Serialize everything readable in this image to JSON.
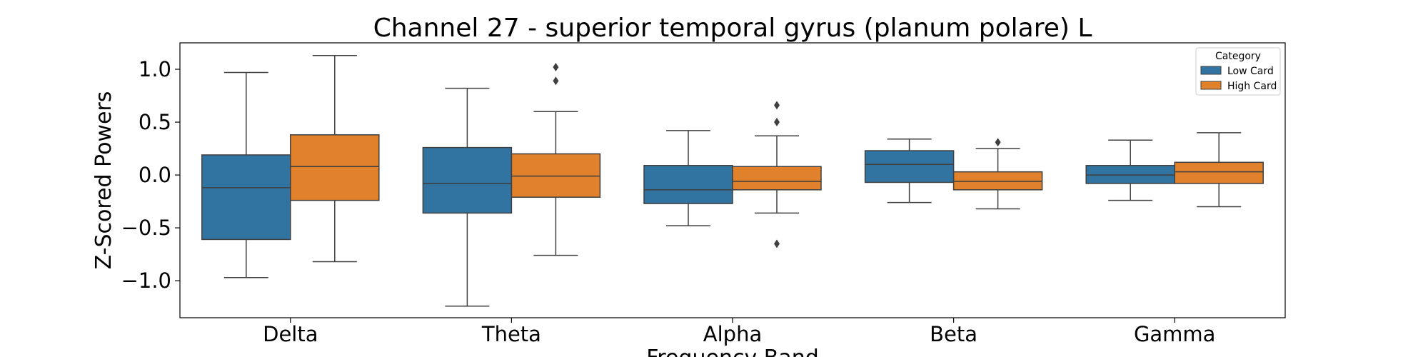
{
  "chart_data": {
    "type": "box",
    "title": "Channel 27 - superior temporal gyrus (planum polare) L",
    "xlabel": "Frequency Band",
    "ylabel": "Z-Scored Powers",
    "ylim": [
      -1.35,
      1.25
    ],
    "yticks": [
      -1.0,
      -0.5,
      0.0,
      0.5,
      1.0
    ],
    "ytick_labels": [
      "−1.0",
      "−0.5",
      "0.0",
      "0.5",
      "1.0"
    ],
    "categories": [
      "Delta",
      "Theta",
      "Alpha",
      "Beta",
      "Gamma"
    ],
    "legend": {
      "title": "Category",
      "placement": "top-right"
    },
    "series": [
      {
        "name": "Low Card",
        "color": "#3274a1",
        "boxes": [
          {
            "whislo": -0.97,
            "q1": -0.61,
            "med": -0.12,
            "q3": 0.19,
            "whishi": 0.97,
            "fliers": []
          },
          {
            "whislo": -1.24,
            "q1": -0.36,
            "med": -0.08,
            "q3": 0.26,
            "whishi": 0.82,
            "fliers": []
          },
          {
            "whislo": -0.48,
            "q1": -0.27,
            "med": -0.14,
            "q3": 0.09,
            "whishi": 0.42,
            "fliers": []
          },
          {
            "whislo": -0.26,
            "q1": -0.07,
            "med": 0.1,
            "q3": 0.23,
            "whishi": 0.34,
            "fliers": []
          },
          {
            "whislo": -0.24,
            "q1": -0.08,
            "med": 0.0,
            "q3": 0.09,
            "whishi": 0.33,
            "fliers": []
          }
        ]
      },
      {
        "name": "High Card",
        "color": "#e1812c",
        "boxes": [
          {
            "whislo": -0.82,
            "q1": -0.24,
            "med": 0.08,
            "q3": 0.38,
            "whishi": 1.13,
            "fliers": []
          },
          {
            "whislo": -0.76,
            "q1": -0.21,
            "med": -0.01,
            "q3": 0.2,
            "whishi": 0.6,
            "fliers": [
              0.89,
              1.02
            ]
          },
          {
            "whislo": -0.36,
            "q1": -0.14,
            "med": -0.06,
            "q3": 0.08,
            "whishi": 0.37,
            "fliers": [
              0.5,
              0.66,
              -0.65
            ]
          },
          {
            "whislo": -0.32,
            "q1": -0.14,
            "med": -0.06,
            "q3": 0.03,
            "whishi": 0.25,
            "fliers": [
              0.31
            ]
          },
          {
            "whislo": -0.3,
            "q1": -0.08,
            "med": 0.03,
            "q3": 0.12,
            "whishi": 0.4,
            "fliers": []
          }
        ]
      }
    ]
  }
}
